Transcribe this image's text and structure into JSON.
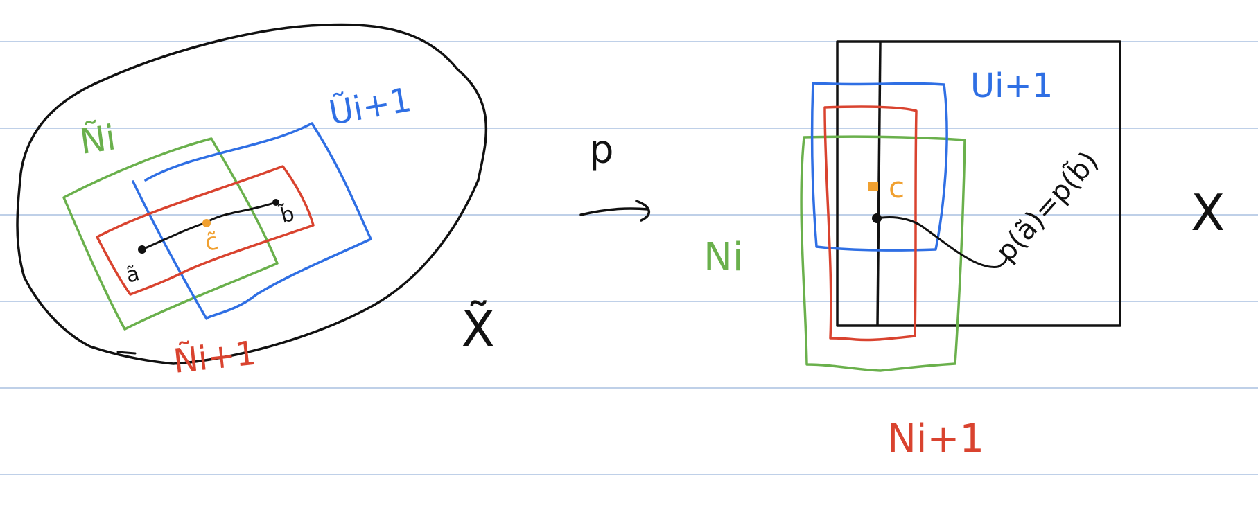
{
  "colors": {
    "ruled_line": "#aac0e0",
    "ink": "#111111",
    "green": "#6ab04c",
    "blue": "#2f6fe4",
    "red": "#d9432f",
    "orange": "#f0a030"
  },
  "left_space": {
    "space_label": "X̃",
    "labels": {
      "n_i": "Ñi",
      "u_next": "Ũi+1",
      "n_next": "Ñi+1",
      "point_a": "ã",
      "point_b": "b̃",
      "point_c": "c̃"
    }
  },
  "map": {
    "label": "p"
  },
  "right_space": {
    "space_label": "X",
    "labels": {
      "n_i": "Ni",
      "u_next": "Ui+1",
      "n_next": "Ni+1",
      "point_c": "c",
      "equation": "p(ã)=p(b̃)"
    }
  }
}
